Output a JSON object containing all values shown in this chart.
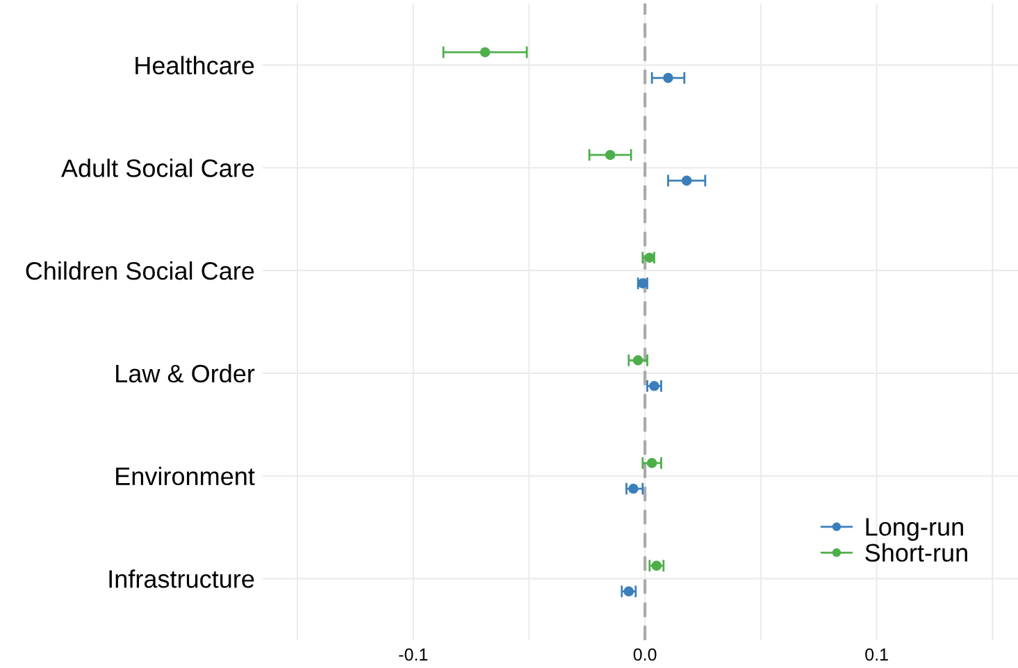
{
  "chart_data": {
    "type": "scatter",
    "orientation": "horizontal",
    "categories": [
      "Healthcare",
      "Adult Social Care",
      "Children Social Care",
      "Law & Order",
      "Environment",
      "Infrastructure"
    ],
    "series": [
      {
        "name": "Long-run",
        "color": "#3a7fba",
        "values": [
          0.01,
          0.018,
          -0.001,
          0.004,
          -0.005,
          -0.007
        ],
        "errors": [
          [
            0.003,
            0.017
          ],
          [
            0.01,
            0.026
          ],
          [
            -0.003,
            0.001
          ],
          [
            0.001,
            0.007
          ],
          [
            -0.008,
            -0.001
          ],
          [
            -0.01,
            -0.004
          ]
        ]
      },
      {
        "name": "Short-run",
        "color": "#4daf4a",
        "values": [
          -0.069,
          -0.015,
          0.002,
          -0.003,
          0.003,
          0.005
        ],
        "errors": [
          [
            -0.087,
            -0.051
          ],
          [
            -0.024,
            -0.006
          ],
          [
            -0.001,
            0.004
          ],
          [
            -0.007,
            0.001
          ],
          [
            -0.001,
            0.007
          ],
          [
            0.002,
            0.008
          ]
        ]
      }
    ],
    "xlim": [
      -0.165,
      0.161
    ],
    "xticks": [
      {
        "value": -0.15,
        "label": null
      },
      -0.1,
      {
        "value": -0.05,
        "label": null
      },
      {
        "value": 0.0,
        "label": "0.0"
      },
      {
        "value": 0.05,
        "label": null
      },
      0.1,
      {
        "value": 0.15,
        "label": null
      }
    ],
    "ref_lines": [
      {
        "axis": "x",
        "value": 0,
        "color": "#aaaaaa",
        "line_style": "dashed"
      }
    ],
    "grid": true,
    "legend": "bottom right",
    "marker": "circle"
  }
}
